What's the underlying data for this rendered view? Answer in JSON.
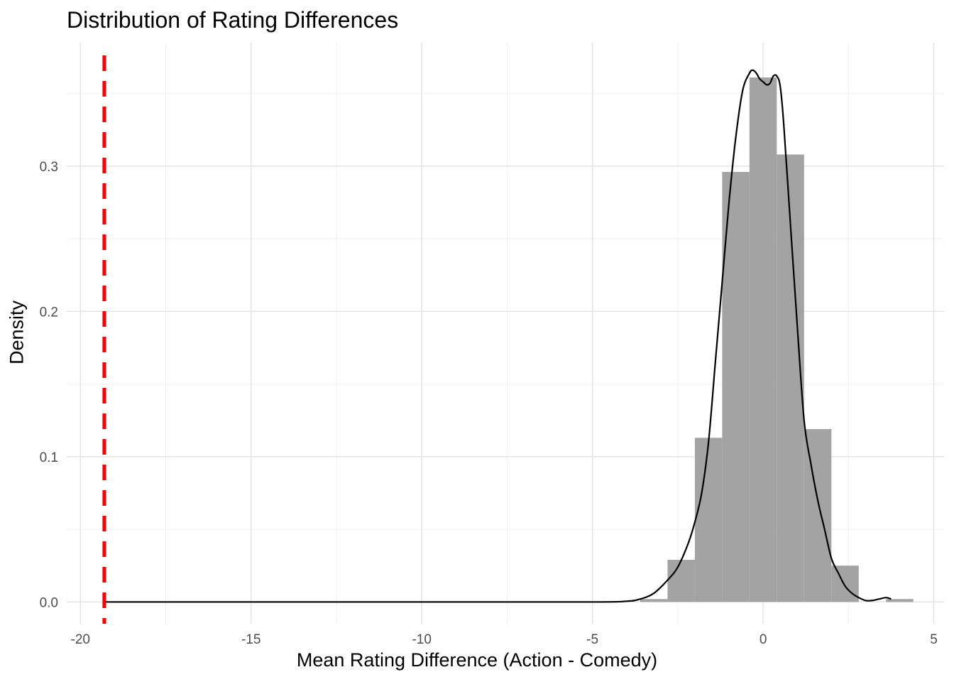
{
  "chart_data": {
    "type": "bar",
    "subtype": "histogram-with-density",
    "title": "Distribution of Rating Differences",
    "xlabel": "Mean Rating Difference (Action - Comedy)",
    "ylabel": "Density",
    "xlim": [
      -20.4,
      5.3
    ],
    "ylim": [
      -0.015,
      0.385
    ],
    "x_ticks": [
      -20,
      -15,
      -10,
      -5,
      0,
      5
    ],
    "x_tick_labels": [
      "-20",
      "-15",
      "-10",
      "-5",
      "0",
      "5"
    ],
    "y_ticks": [
      0.0,
      0.1,
      0.2,
      0.3
    ],
    "y_tick_labels": [
      "0.0",
      "0.1",
      "0.2",
      "0.3"
    ],
    "x_minor_ticks": [
      -17.5,
      -12.5,
      -7.5,
      -2.5,
      2.5
    ],
    "y_minor_ticks": [
      0.05,
      0.15,
      0.25,
      0.35
    ],
    "grid": true,
    "bar_color": "#a3a3a3",
    "density_color": "#000000",
    "reference_line_color": "#ff0000",
    "histogram": {
      "bin_width": 0.8,
      "bins": [
        {
          "x_start": -3.6,
          "x_end": -2.8,
          "density": 0.002
        },
        {
          "x_start": -2.8,
          "x_end": -2.0,
          "density": 0.029
        },
        {
          "x_start": -2.0,
          "x_end": -1.2,
          "density": 0.113
        },
        {
          "x_start": -1.2,
          "x_end": -0.4,
          "density": 0.296
        },
        {
          "x_start": -0.4,
          "x_end": 0.4,
          "density": 0.361
        },
        {
          "x_start": 0.4,
          "x_end": 1.2,
          "density": 0.308
        },
        {
          "x_start": 1.2,
          "x_end": 2.0,
          "density": 0.119
        },
        {
          "x_start": 2.0,
          "x_end": 2.8,
          "density": 0.025
        },
        {
          "x_start": 2.8,
          "x_end": 3.6,
          "density": 0.0
        },
        {
          "x_start": 3.6,
          "x_end": 4.4,
          "density": 0.002
        }
      ]
    },
    "density_curve": {
      "x": [
        -19.3,
        -10,
        -5,
        -4.0,
        -3.6,
        -3.2,
        -2.8,
        -2.5,
        -2.2,
        -2.0,
        -1.8,
        -1.6,
        -1.4,
        -1.2,
        -1.0,
        -0.8,
        -0.6,
        -0.4,
        -0.3,
        -0.2,
        -0.1,
        0.0,
        0.1,
        0.2,
        0.3,
        0.4,
        0.5,
        0.6,
        0.8,
        1.0,
        1.2,
        1.4,
        1.6,
        1.8,
        2.0,
        2.2,
        2.4,
        2.6,
        2.8,
        3.0,
        3.2,
        3.4,
        3.6,
        3.75
      ],
      "y": [
        0.0,
        0.0,
        0.0,
        0.0005,
        0.002,
        0.006,
        0.015,
        0.024,
        0.04,
        0.055,
        0.075,
        0.11,
        0.165,
        0.22,
        0.275,
        0.32,
        0.352,
        0.364,
        0.366,
        0.364,
        0.36,
        0.358,
        0.356,
        0.357,
        0.362,
        0.362,
        0.355,
        0.33,
        0.26,
        0.19,
        0.125,
        0.095,
        0.07,
        0.05,
        0.03,
        0.02,
        0.011,
        0.006,
        0.003,
        0.001,
        0.001,
        0.002,
        0.003,
        0.002
      ]
    },
    "reference_line": {
      "x": -19.3,
      "style": "dashed"
    }
  }
}
